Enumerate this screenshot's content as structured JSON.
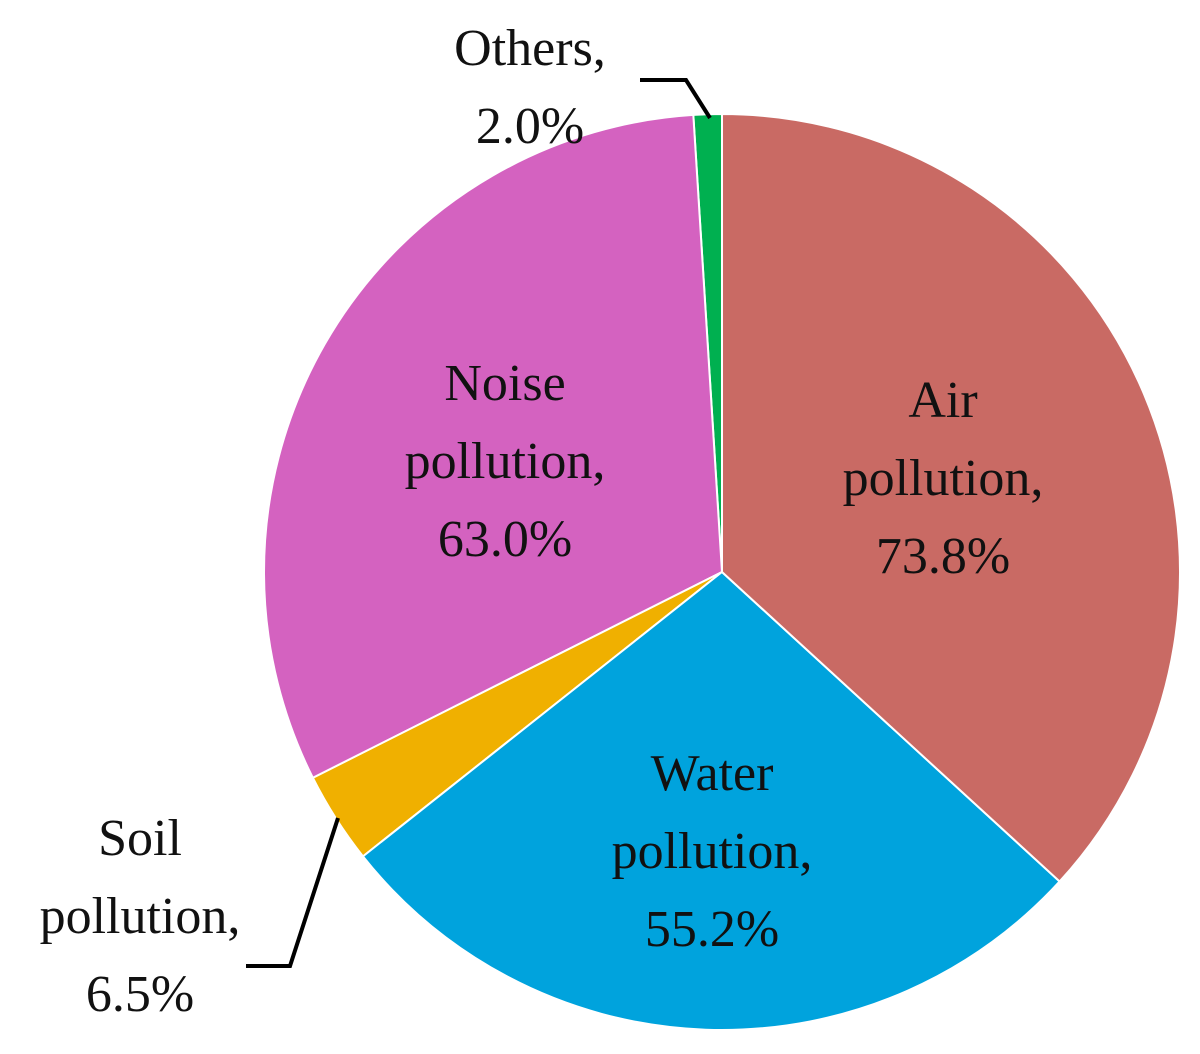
{
  "chart_data": {
    "type": "pie",
    "categories": [
      "Air pollution,",
      "Water pollution,",
      "Soil pollution,",
      "Noise pollution,",
      "Others,"
    ],
    "values": [
      73.8,
      55.2,
      6.5,
      63.0,
      2.0
    ],
    "value_labels": [
      "73.8%",
      "55.2%",
      "6.5%",
      "63.0%",
      "2.0%"
    ],
    "colors": [
      "#c96a64",
      "#00a3dd",
      "#f0b000",
      "#d462c0",
      "#00b050"
    ]
  }
}
